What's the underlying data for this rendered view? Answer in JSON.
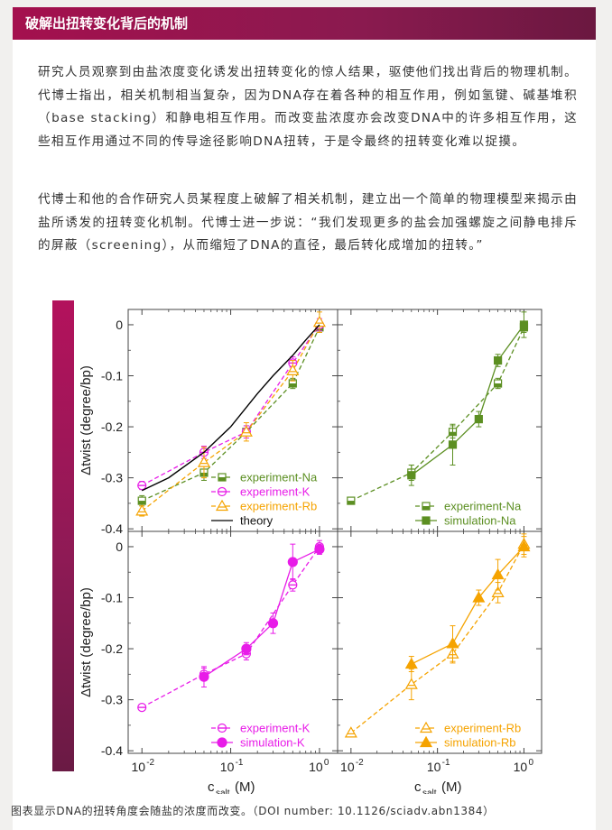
{
  "article": {
    "section_title": "破解出扭转变化背后的机制",
    "paragraph1": "研究人员观察到由盐浓度变化诱发出扭转变化的惊人结果，驱使他们找出背后的物理机制。代博士指出，相关机制相当复杂，因为DNA存在着各种的相互作用，例如氢键、碱基堆积（base stacking）和静电相互作用。而改变盐浓度亦会改变DNA中的许多相互作用，这些相互作用通过不同的传导途径影响DNA扭转，于是令最终的扭转变化难以捉摸。",
    "paragraph2": "代博士和他的合作研究人员某程度上破解了相关机制，建立出一个简单的物理模型来揭示由盐所诱发的扭转变化机制。代博士进一步说：“我们发现更多的盐会加强螺旋之间静电排斥的屏蔽（screening），从而缩短了DNA的直径，最后转化成增加的扭转。”",
    "caption": "图表显示DNA的扭转角度会随盐的浓度而改变。（DOI number: 10.1126/sciadv.abn1384）"
  },
  "colors": {
    "header": "#a4104e",
    "sidebar": "#9a1658",
    "na": "#5c8f22",
    "k": "#e81ce8",
    "rb": "#f5a300",
    "theory": "#000000"
  },
  "chart_data": {
    "type": "line",
    "layout": "2x2 panels",
    "ylabel": "Δtwist (degree/bp)",
    "xlabel": "c_salt (M)",
    "xlabel_main": "c",
    "xlabel_sub": "salt",
    "xlabel_unit": " (M)",
    "xscale": "log",
    "xlim": [
      0.007,
      1.6
    ],
    "ylim": [
      -0.405,
      0.03
    ],
    "y_ticks": [
      0,
      -0.1,
      -0.2,
      -0.3,
      -0.4
    ],
    "y_tick_labels": [
      "0",
      "-0.1",
      "-0.2",
      "-0.3",
      "-0.4"
    ],
    "x_ticks": [
      0.01,
      0.1,
      1
    ],
    "x_tick_base": "10",
    "x_tick_exponents": [
      "-2",
      "-1",
      "0"
    ],
    "panels": [
      {
        "position": "top-left",
        "legend": "bottom-right",
        "series": [
          {
            "name": "experiment-Na",
            "color": "#5c8f22",
            "style": "dashed",
            "marker": "half-square",
            "x": [
              0.01,
              0.05,
              0.15,
              0.5,
              1.0
            ],
            "y": [
              -0.345,
              -0.29,
              -0.21,
              -0.115,
              -0.005
            ],
            "err": [
              0.01,
              0.015,
              0.012,
              0.01,
              0.01
            ]
          },
          {
            "name": "experiment-K",
            "color": "#e81ce8",
            "style": "dashed",
            "marker": "half-circle",
            "x": [
              0.01,
              0.05,
              0.15,
              0.5,
              1.0
            ],
            "y": [
              -0.315,
              -0.25,
              -0.21,
              -0.075,
              0.0
            ],
            "err": [
              0.008,
              0.012,
              0.012,
              0.012,
              0.012
            ]
          },
          {
            "name": "experiment-Rb",
            "color": "#f5a300",
            "style": "dashed",
            "marker": "half-triangle",
            "x": [
              0.01,
              0.05,
              0.15,
              0.5,
              1.0
            ],
            "y": [
              -0.365,
              -0.27,
              -0.21,
              -0.09,
              0.005
            ],
            "err": [
              0.01,
              0.03,
              0.018,
              0.02,
              0.02
            ]
          },
          {
            "name": "theory",
            "color": "#000000",
            "style": "solid",
            "marker": "none",
            "x": [
              0.01,
              0.02,
              0.05,
              0.1,
              0.2,
              0.3,
              0.5,
              0.7,
              1.0
            ],
            "y": [
              -0.325,
              -0.3,
              -0.25,
              -0.2,
              -0.135,
              -0.1,
              -0.06,
              -0.03,
              0.0
            ],
            "err": []
          }
        ]
      },
      {
        "position": "top-right",
        "legend": "bottom-right",
        "series": [
          {
            "name": "experiment-Na",
            "color": "#5c8f22",
            "style": "dashed",
            "marker": "half-square",
            "x": [
              0.01,
              0.05,
              0.15,
              0.5,
              1.0
            ],
            "y": [
              -0.345,
              -0.29,
              -0.21,
              -0.115,
              -0.005
            ],
            "err": [
              0.004,
              0.015,
              0.012,
              0.01,
              0.01
            ]
          },
          {
            "name": "simulation-Na",
            "color": "#5c8f22",
            "style": "solid",
            "marker": "square",
            "x": [
              0.05,
              0.15,
              0.3,
              0.5,
              1.0
            ],
            "y": [
              -0.295,
              -0.235,
              -0.185,
              -0.07,
              0.0
            ],
            "err": [
              0.02,
              0.04,
              0.015,
              0.012,
              0.025
            ]
          }
        ]
      },
      {
        "position": "bottom-left",
        "legend": "bottom-right",
        "series": [
          {
            "name": "experiment-K",
            "color": "#e81ce8",
            "style": "dashed",
            "marker": "half-circle",
            "x": [
              0.01,
              0.05,
              0.15,
              0.5,
              1.0
            ],
            "y": [
              -0.315,
              -0.25,
              -0.21,
              -0.075,
              0.0
            ],
            "err": [
              0.006,
              0.012,
              0.012,
              0.012,
              0.012
            ]
          },
          {
            "name": "simulation-K",
            "color": "#e81ce8",
            "style": "solid",
            "marker": "circle",
            "x": [
              0.05,
              0.15,
              0.3,
              0.5,
              1.0
            ],
            "y": [
              -0.255,
              -0.2,
              -0.15,
              -0.03,
              -0.005
            ],
            "err": [
              0.02,
              0.012,
              0.02,
              0.035,
              0.01
            ]
          }
        ]
      },
      {
        "position": "bottom-right",
        "legend": "bottom-right",
        "series": [
          {
            "name": "experiment-Rb",
            "color": "#f5a300",
            "style": "dashed",
            "marker": "half-triangle",
            "x": [
              0.01,
              0.05,
              0.15,
              0.5,
              1.0
            ],
            "y": [
              -0.365,
              -0.27,
              -0.21,
              -0.09,
              0.005
            ],
            "err": [
              0.004,
              0.03,
              0.018,
              0.02,
              0.02
            ]
          },
          {
            "name": "simulation-Rb",
            "color": "#f5a300",
            "style": "solid",
            "marker": "triangle",
            "x": [
              0.05,
              0.15,
              0.3,
              0.5,
              1.0
            ],
            "y": [
              -0.23,
              -0.19,
              -0.1,
              -0.055,
              0.0
            ],
            "err": [
              0.015,
              0.035,
              0.015,
              0.03,
              0.02
            ]
          }
        ]
      }
    ]
  }
}
